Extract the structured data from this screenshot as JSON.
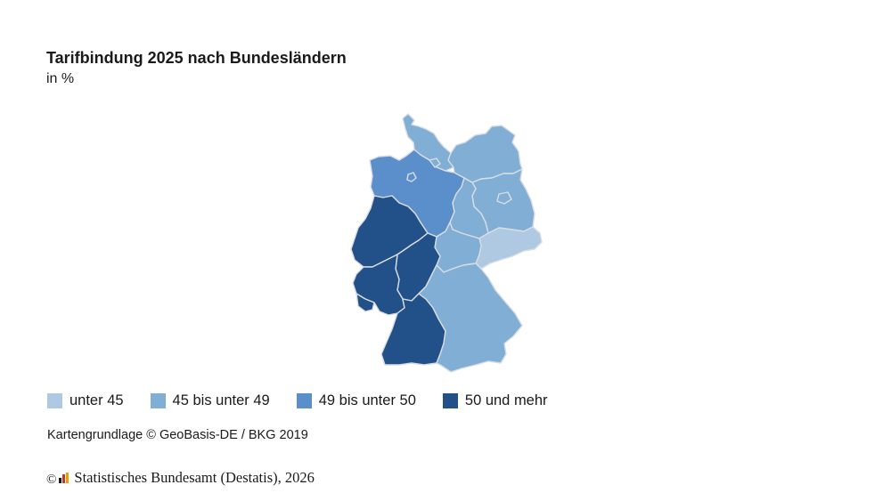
{
  "title": "Tarifbindung 2025 nach Bundesländern",
  "subtitle": "in %",
  "legend": [
    {
      "label": "unter 45",
      "color": "#afc9e2"
    },
    {
      "label": "45 bis unter 49",
      "color": "#80aed4"
    },
    {
      "label": "49 bis unter 50",
      "color": "#5b8fcb"
    },
    {
      "label": "50 und mehr",
      "color": "#22518a"
    }
  ],
  "map_states": [
    {
      "name": "Schleswig-Holstein",
      "class": "45 bis unter 49"
    },
    {
      "name": "Mecklenburg-Vorpommern",
      "class": "45 bis unter 49"
    },
    {
      "name": "Niedersachsen",
      "class": "49 bis unter 50"
    },
    {
      "name": "Bremen",
      "class": "49 bis unter 50"
    },
    {
      "name": "Hamburg",
      "class": "45 bis unter 49"
    },
    {
      "name": "Brandenburg",
      "class": "45 bis unter 49"
    },
    {
      "name": "Berlin",
      "class": "45 bis unter 49"
    },
    {
      "name": "Sachsen-Anhalt",
      "class": "45 bis unter 49"
    },
    {
      "name": "Sachsen",
      "class": "unter 45"
    },
    {
      "name": "Thüringen",
      "class": "45 bis unter 49"
    },
    {
      "name": "Nordrhein-Westfalen",
      "class": "50 und mehr"
    },
    {
      "name": "Hessen",
      "class": "50 und mehr"
    },
    {
      "name": "Rheinland-Pfalz",
      "class": "50 und mehr"
    },
    {
      "name": "Saarland",
      "class": "50 und mehr"
    },
    {
      "name": "Baden-Württemberg",
      "class": "50 und mehr"
    },
    {
      "name": "Bayern",
      "class": "45 bis unter 49"
    }
  ],
  "source_note": "Kartengrundlage © GeoBasis-DE / BKG 2019",
  "copyright": {
    "symbol": "©",
    "text": "Statistisches Bundesamt (Destatis), 2026"
  }
}
